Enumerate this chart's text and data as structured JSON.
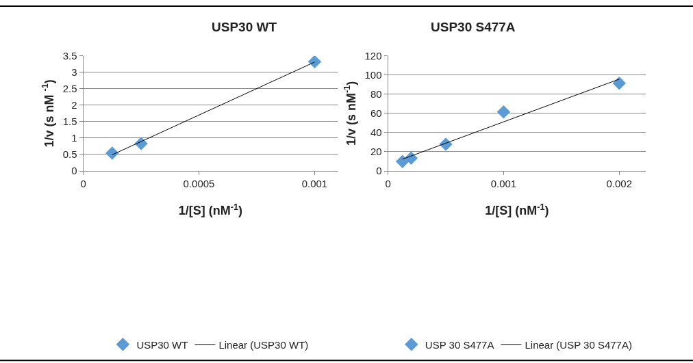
{
  "chart_data": [
    {
      "type": "scatter",
      "title": "USP30 WT",
      "xlabel": "1/[S] (nM$^{-1}$)",
      "ylabel": "1/v (s nM $^{-1}$)",
      "xlim": [
        0,
        0.0011
      ],
      "xticks": [
        0,
        0.0005,
        0.001
      ],
      "ylim": [
        0,
        3.5
      ],
      "yticks": [
        0,
        0.5,
        1,
        1.5,
        2,
        2.5,
        3,
        3.5
      ],
      "grid": "y",
      "legend": "bottom",
      "marker": "diamond",
      "series": [
        {
          "name": "USP30 WT",
          "color": "#5b9bd5",
          "x": [
            0.000125,
            0.00025,
            0.001
          ],
          "values": [
            0.54,
            0.83,
            3.32
          ]
        },
        {
          "name": "Linear (USP30 WT)",
          "type": "line",
          "marker": "none",
          "color": "#000000",
          "x": [
            0.000125,
            0.001
          ],
          "values": [
            0.49,
            3.31
          ]
        }
      ]
    },
    {
      "type": "scatter",
      "title": "USP30 S477A",
      "xlabel": "1/[S] (nM$^{-1}$)",
      "ylabel": "1/v (s nM$^{-1}$)",
      "xlim": [
        0,
        0.00223
      ],
      "xticks": [
        0,
        0.001,
        0.002
      ],
      "ylim": [
        0,
        120
      ],
      "yticks": [
        0,
        20,
        40,
        60,
        80,
        100,
        120
      ],
      "grid": "y",
      "legend": "bottom",
      "marker": "diamond",
      "series": [
        {
          "name": "USP 30 S477A",
          "color": "#5b9bd5",
          "x": [
            0.000125,
            0.0002,
            0.0005,
            0.001,
            0.002
          ],
          "values": [
            9.8,
            13.3,
            27.8,
            61.5,
            91.4
          ]
        },
        {
          "name": "Linear (USP 30 S477A)",
          "type": "line",
          "marker": "none",
          "color": "#000000",
          "x": [
            0.000125,
            0.002
          ],
          "values": [
            12.2,
            95.7
          ]
        }
      ]
    }
  ]
}
